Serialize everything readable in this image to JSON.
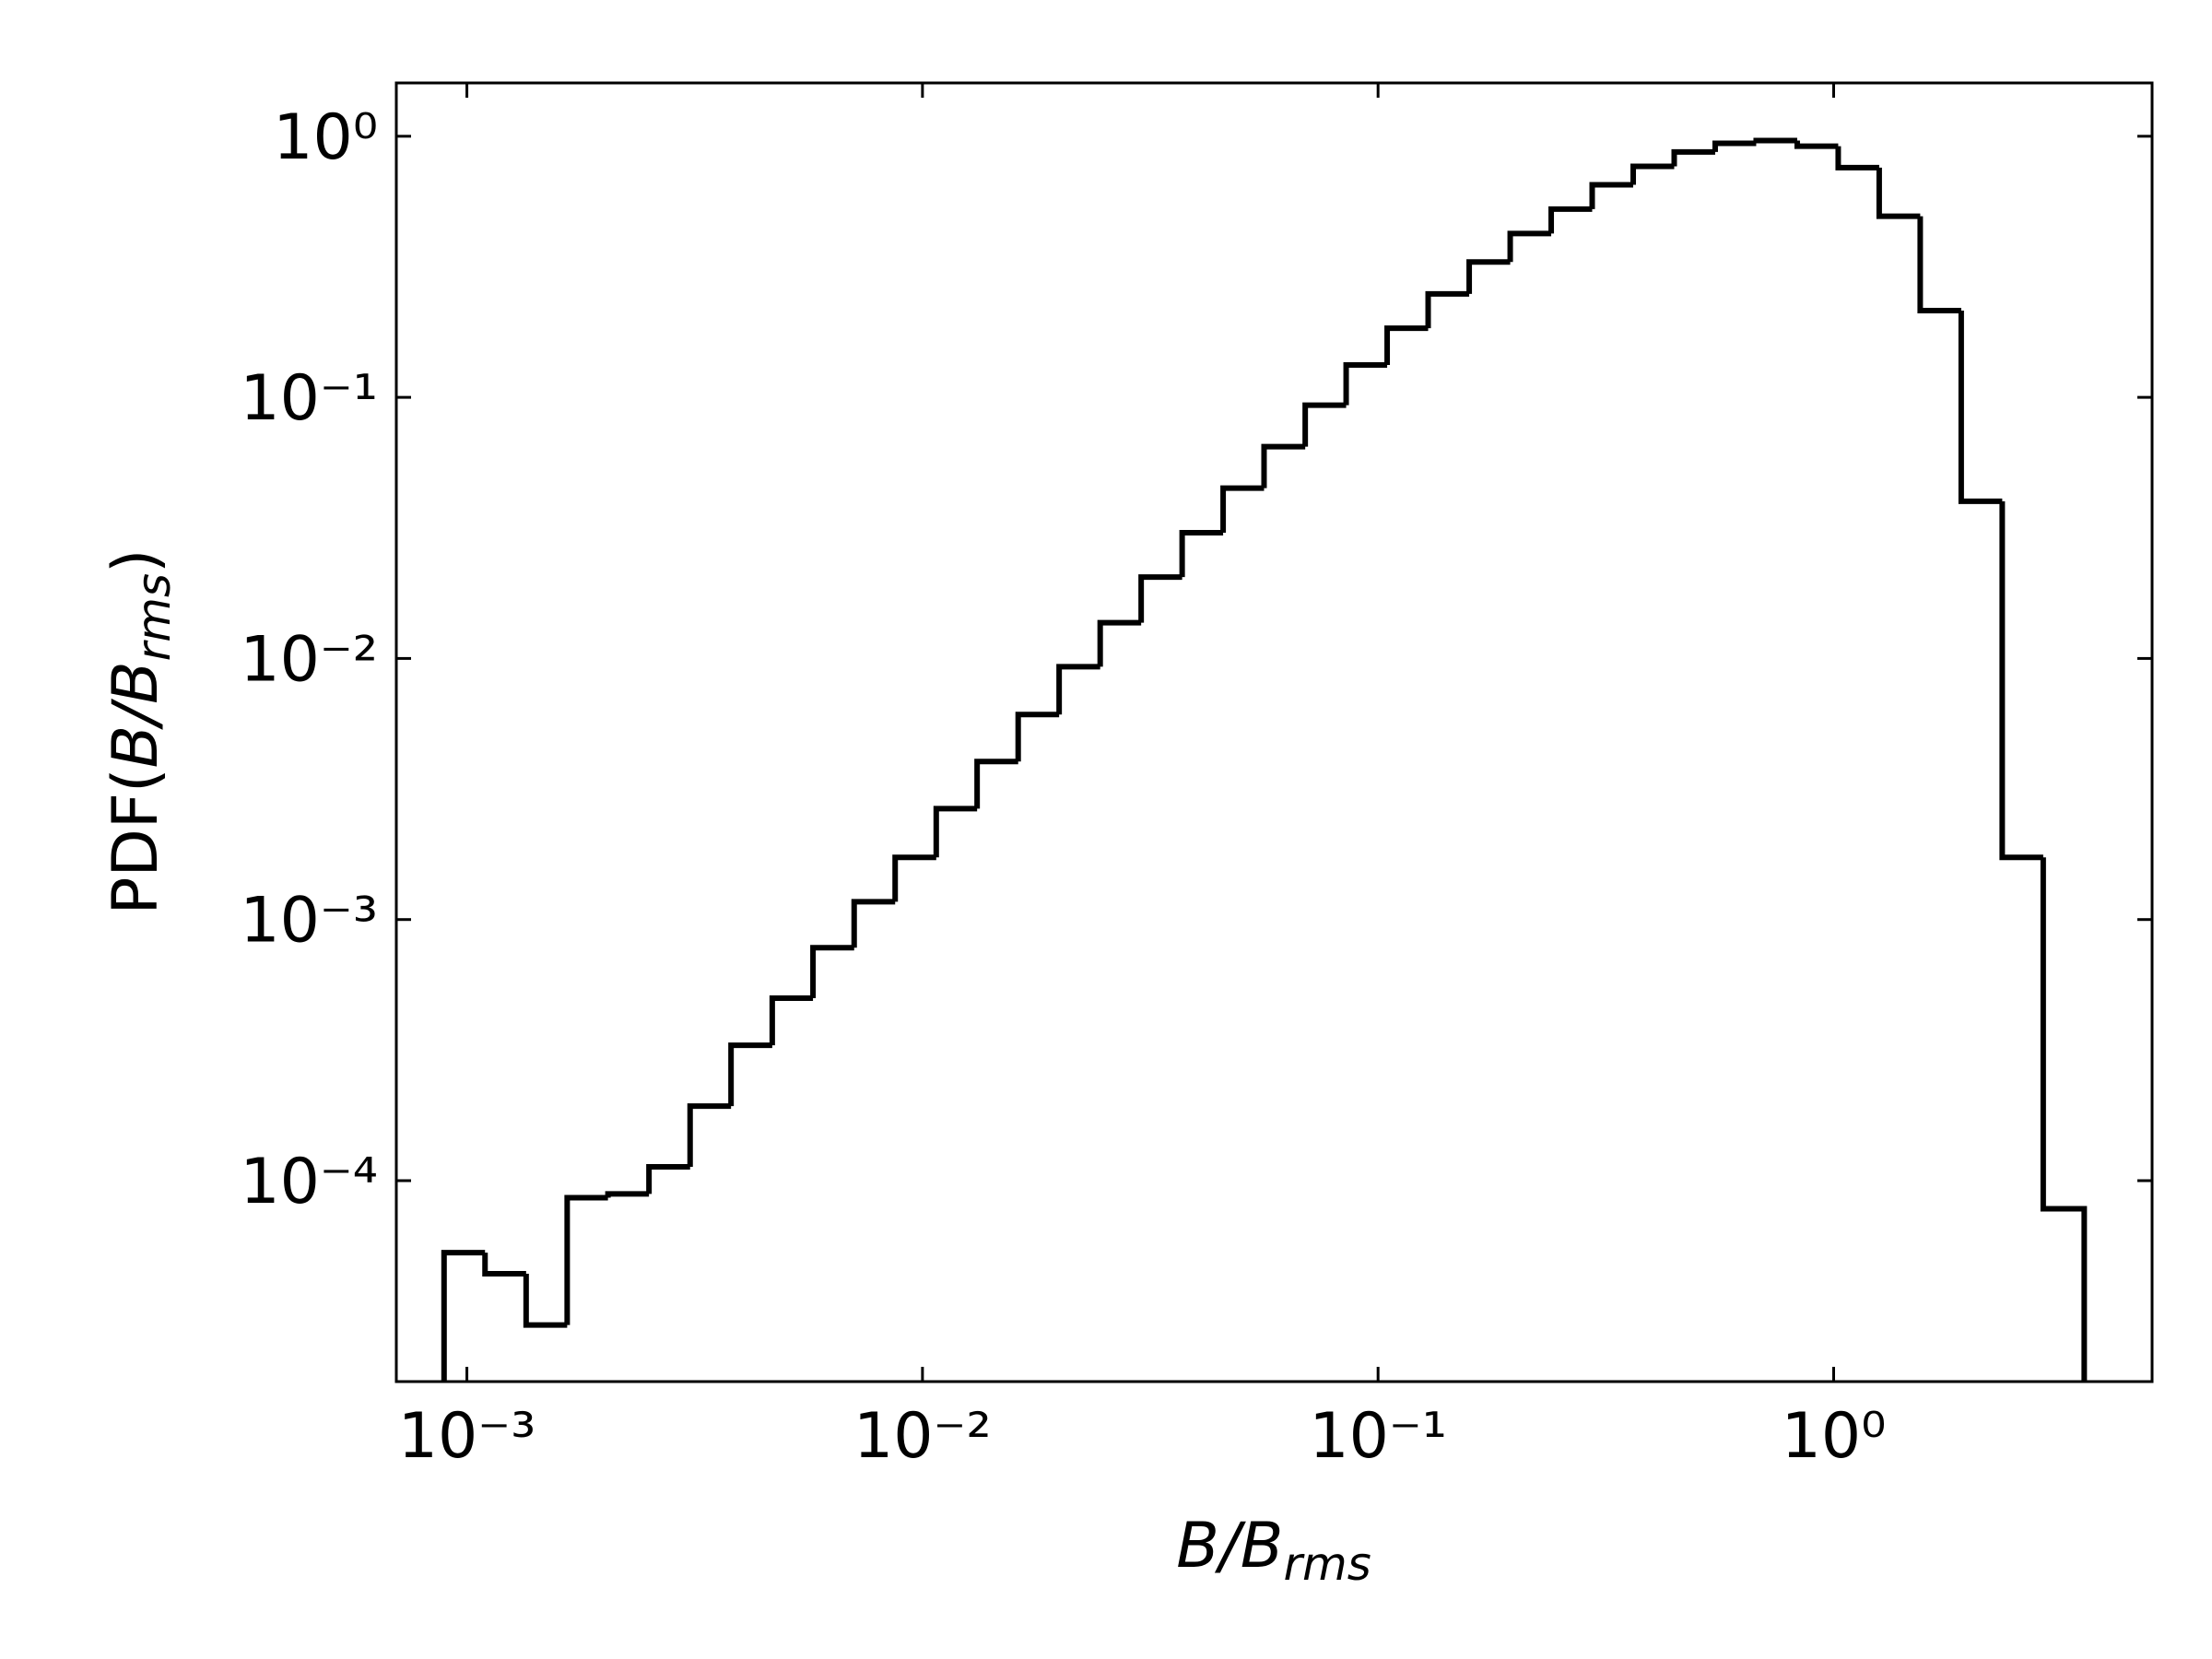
{
  "chart_data": {
    "type": "histogram",
    "xlabel": [
      "B/B",
      "rms"
    ],
    "ylabel": [
      "PDF(",
      "B/B",
      "rms",
      ")"
    ],
    "xscale": "log",
    "yscale": "log",
    "color": "#000000",
    "histtype": "step",
    "bins": [
      0.000891,
      0.001096,
      0.001349,
      0.00166,
      0.00204,
      0.00251,
      0.00309,
      0.0038,
      0.00468,
      0.00575,
      0.00708,
      0.00871,
      0.01072,
      0.01318,
      0.01622,
      0.01995,
      0.02455,
      0.0302,
      0.03715,
      0.0457,
      0.0562,
      0.0692,
      0.0851,
      0.1047,
      0.1288,
      0.1585,
      0.195,
      0.2399,
      0.2951,
      0.3631,
      0.4467,
      0.5495,
      0.6761,
      0.8318,
      1.0233,
      1.2589,
      1.5488,
      1.9055,
      2.3442,
      2.884,
      3.548
    ],
    "values": [
      5.3e-05,
      4.4e-05,
      2.8e-05,
      8.6e-05,
      8.9e-05,
      0.000113,
      0.000193,
      0.00033,
      0.0005,
      0.00078,
      0.00117,
      0.00173,
      0.00266,
      0.00403,
      0.0061,
      0.0093,
      0.0137,
      0.0205,
      0.0303,
      0.0449,
      0.0647,
      0.0933,
      0.133,
      0.184,
      0.249,
      0.33,
      0.424,
      0.526,
      0.652,
      0.767,
      0.871,
      0.94,
      0.963,
      0.916,
      0.758,
      0.494,
      0.215,
      0.04,
      0.00173,
      7.8e-05
    ],
    "xlim": [
      0.0007,
      5
    ],
    "ylim": [
      1.7e-05,
      1.6
    ],
    "xticks": [
      {
        "value": 0.001,
        "label": "10⁻³"
      },
      {
        "value": 0.01,
        "label": "10⁻²"
      },
      {
        "value": 0.1,
        "label": "10⁻¹"
      },
      {
        "value": 1,
        "label": "10⁰"
      }
    ],
    "yticks": [
      {
        "value": 0.0001,
        "label": "10⁻⁴"
      },
      {
        "value": 0.001,
        "label": "10⁻³"
      },
      {
        "value": 0.01,
        "label": "10⁻²"
      },
      {
        "value": 0.1,
        "label": "10⁻¹"
      },
      {
        "value": 1,
        "label": "10⁰"
      }
    ]
  }
}
